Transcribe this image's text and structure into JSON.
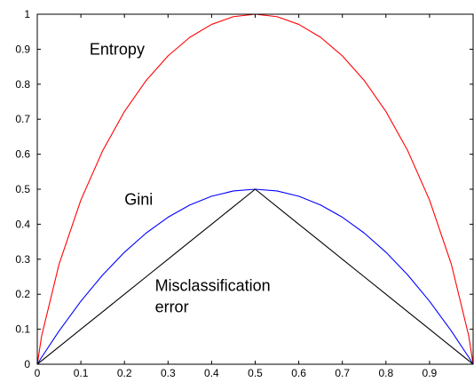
{
  "chart_data": {
    "type": "line",
    "title": "",
    "xlabel": "",
    "ylabel": "",
    "xlim": [
      0,
      1
    ],
    "ylim": [
      0,
      1
    ],
    "x_ticks": [
      0,
      0.1,
      0.2,
      0.3,
      0.4,
      0.5,
      0.6,
      0.7,
      0.8,
      0.9
    ],
    "x_tick_labels": [
      "0",
      "0.1",
      "0.2",
      "0.3",
      "0.4",
      "0.5",
      "0.6",
      "0.7",
      "0.8",
      "0.9"
    ],
    "y_ticks": [
      0,
      0.1,
      0.2,
      0.3,
      0.4,
      0.5,
      0.6,
      0.7,
      0.8,
      0.9,
      1
    ],
    "y_tick_labels": [
      "0",
      "0.1",
      "0.2",
      "0.3",
      "0.4",
      "0.5",
      "0.6",
      "0.7",
      "0.8",
      "0.9",
      "1"
    ],
    "grid": false,
    "x": [
      0,
      0.01,
      0.05,
      0.1,
      0.15,
      0.2,
      0.25,
      0.3,
      0.35,
      0.4,
      0.45,
      0.5,
      0.55,
      0.6,
      0.65,
      0.7,
      0.75,
      0.8,
      0.85,
      0.9,
      0.95,
      0.99,
      1
    ],
    "series": [
      {
        "name": "Entropy",
        "color": "#ff0000",
        "values": [
          0,
          0.081,
          0.286,
          0.469,
          0.61,
          0.722,
          0.811,
          0.881,
          0.934,
          0.971,
          0.993,
          1,
          0.993,
          0.971,
          0.934,
          0.881,
          0.811,
          0.722,
          0.61,
          0.469,
          0.286,
          0.081,
          0
        ]
      },
      {
        "name": "Gini",
        "color": "#0000ff",
        "values": [
          0,
          0.02,
          0.095,
          0.18,
          0.255,
          0.32,
          0.375,
          0.42,
          0.455,
          0.48,
          0.495,
          0.5,
          0.495,
          0.48,
          0.455,
          0.42,
          0.375,
          0.32,
          0.255,
          0.18,
          0.095,
          0.02,
          0
        ]
      },
      {
        "name": "Misclassification error",
        "color": "#000000",
        "values": [
          0,
          0.01,
          0.05,
          0.1,
          0.15,
          0.2,
          0.25,
          0.3,
          0.35,
          0.4,
          0.45,
          0.5,
          0.45,
          0.4,
          0.35,
          0.3,
          0.25,
          0.2,
          0.15,
          0.1,
          0.05,
          0.01,
          0
        ]
      }
    ],
    "annotations": [
      {
        "text": "Entropy",
        "x": 0.12,
        "y": 0.885
      },
      {
        "text": "Gini",
        "x": 0.2,
        "y": 0.455
      },
      {
        "lines": [
          "Misclassification",
          "error"
        ],
        "x": 0.27,
        "y": 0.21
      }
    ]
  }
}
